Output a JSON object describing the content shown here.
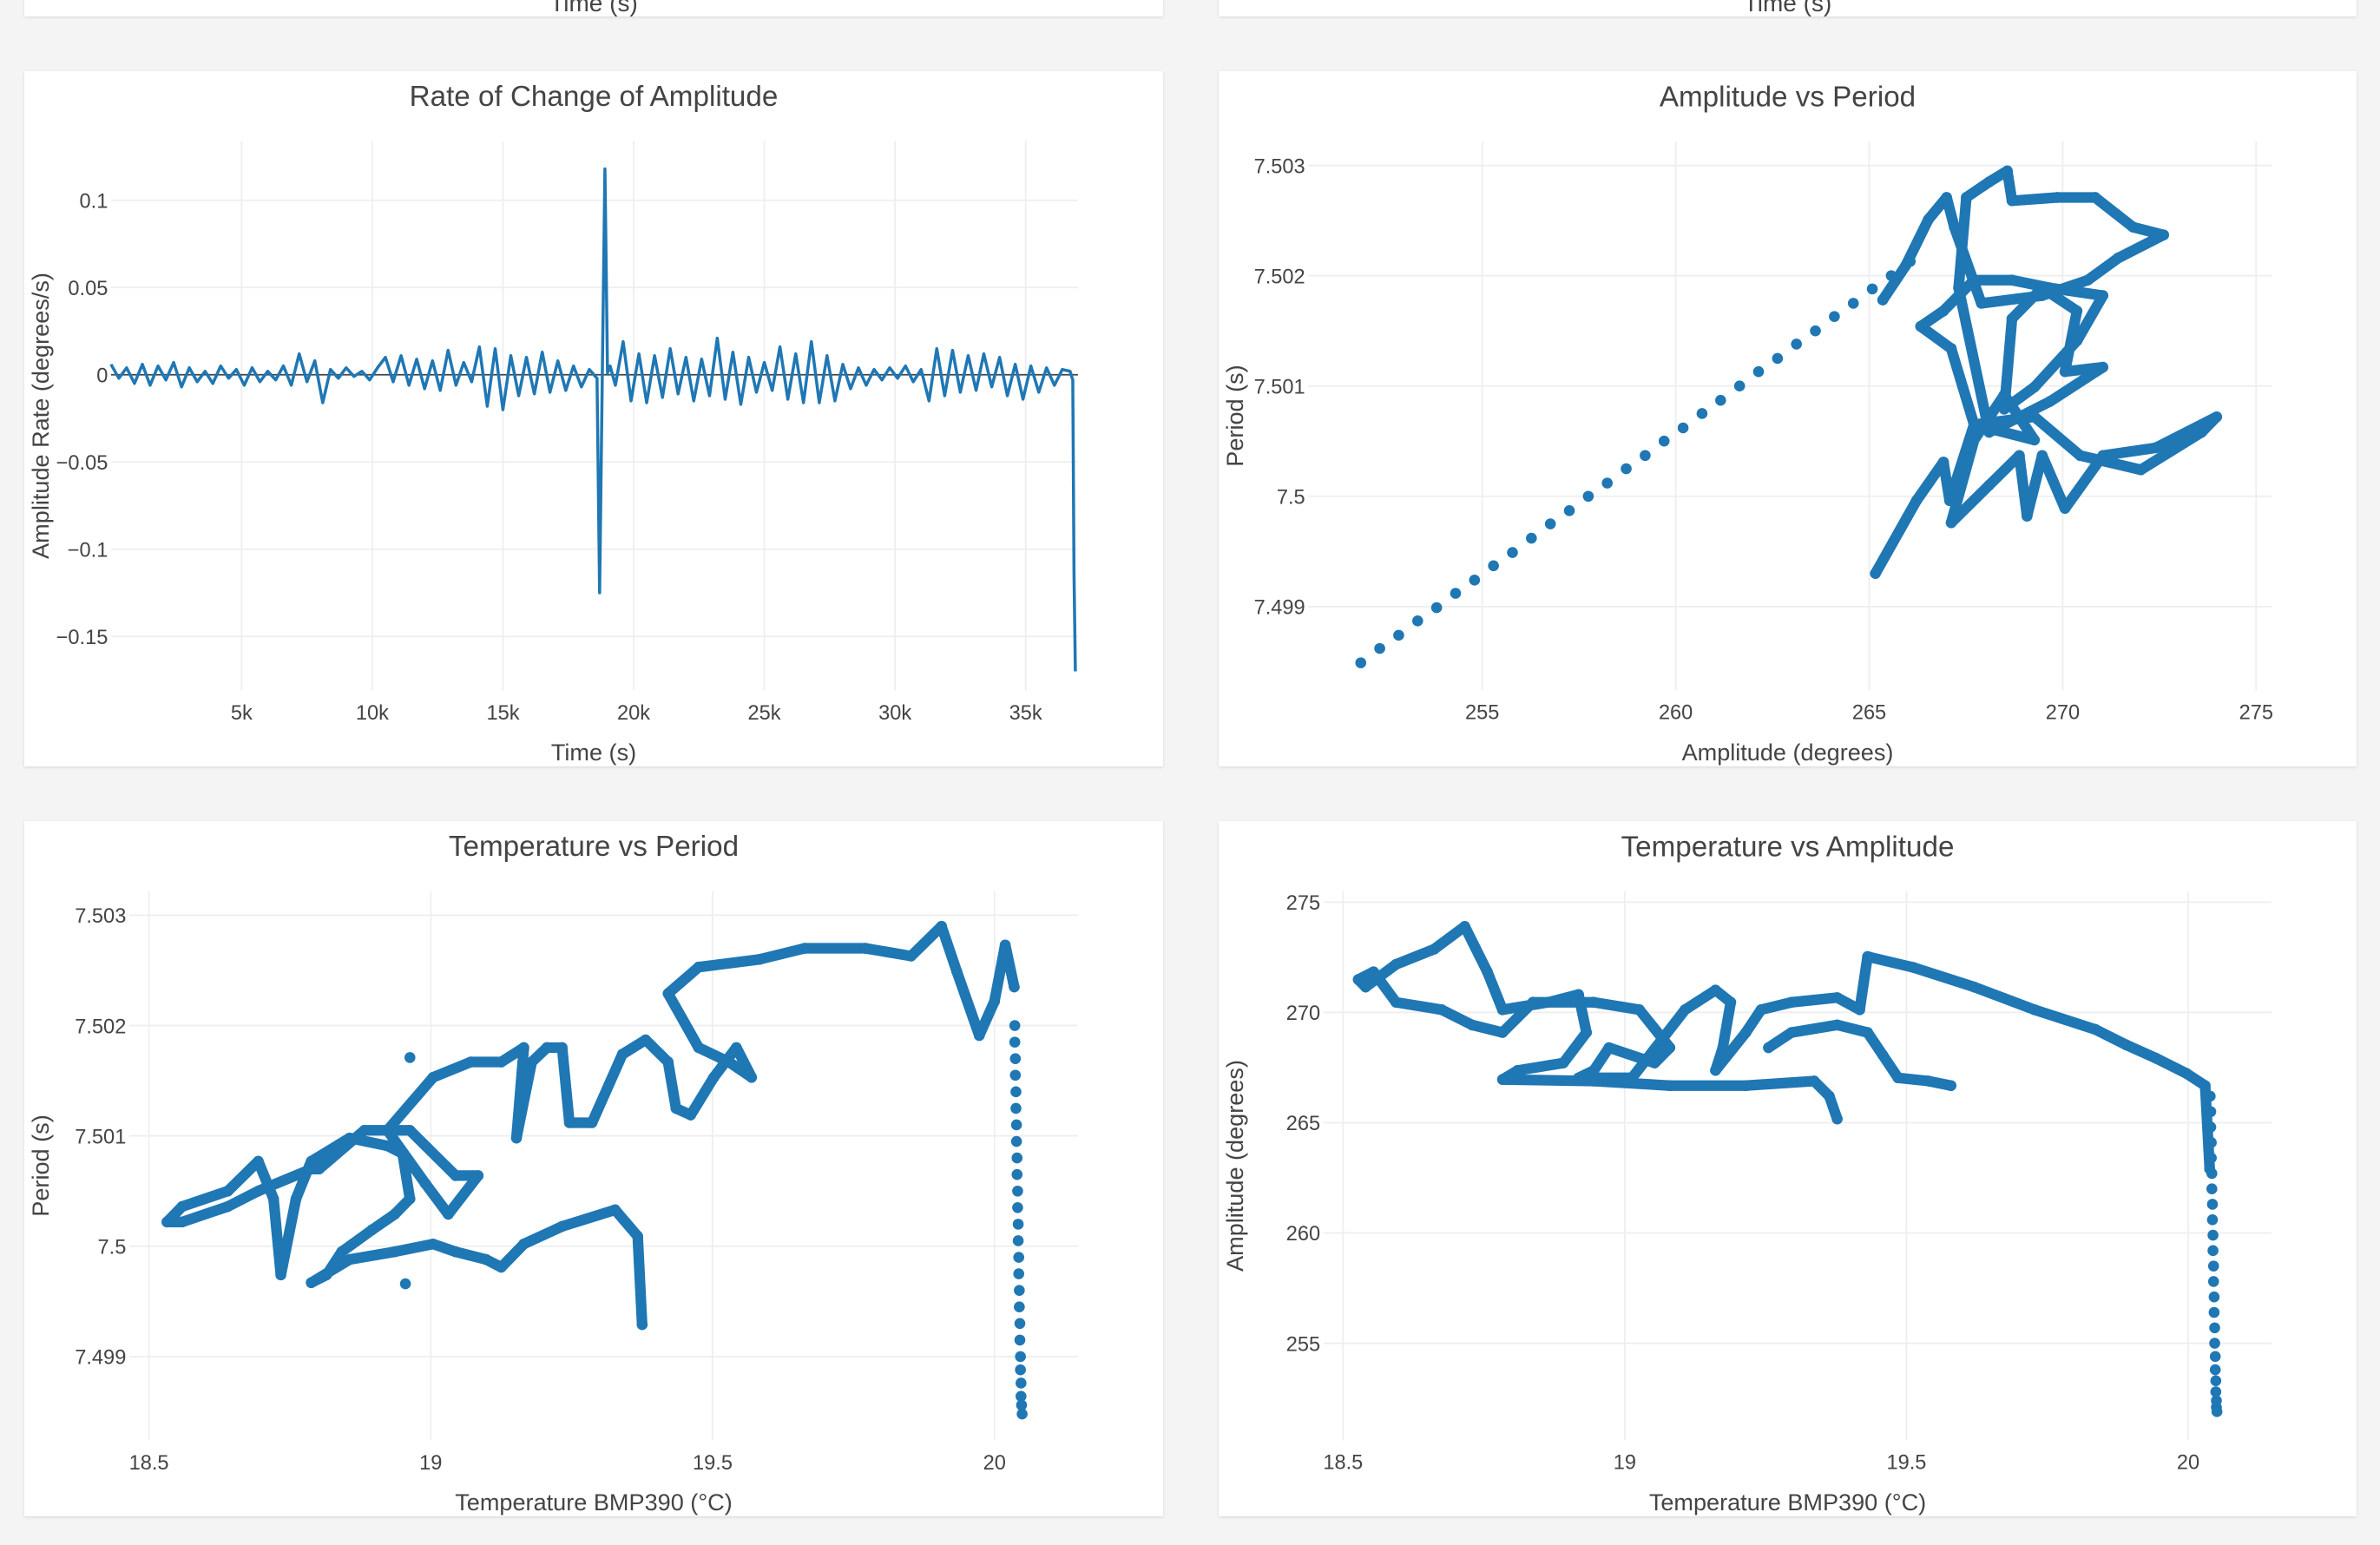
{
  "top_partial": [
    {
      "xlabel": "Time (s)"
    },
    {
      "xlabel": "Time (s)"
    }
  ],
  "colors": {
    "series": "#1f77b4",
    "grid": "#eeeeee",
    "zero_line": "#444444",
    "background": "#f4f4f4"
  },
  "chart_data": [
    {
      "type": "line",
      "title": "Rate of Change of Amplitude",
      "xlabel": "Time (s)",
      "ylabel": "Amplitude Rate (degrees/s)",
      "xlim": [
        0,
        37000
      ],
      "ylim": [
        -0.181,
        0.134
      ],
      "xticks": [
        5000,
        10000,
        15000,
        20000,
        25000,
        30000,
        35000
      ],
      "xtick_labels": [
        "5k",
        "10k",
        "15k",
        "20k",
        "25k",
        "30k",
        "35k"
      ],
      "yticks": [
        0.1,
        0.05,
        0,
        -0.05,
        -0.1,
        -0.15
      ],
      "ytick_labels": [
        "0.1",
        "0.05",
        "0",
        "−0.05",
        "−0.1",
        "−0.15"
      ],
      "grid": true,
      "zero_line": true,
      "series": [
        {
          "x": [
            0,
            300,
            600,
            900,
            1200,
            1500,
            1800,
            2100,
            2400,
            2700,
            3000,
            3300,
            3600,
            3900,
            4200,
            4500,
            4800,
            5100,
            5400,
            5700,
            6000,
            6300,
            6600,
            6900,
            7200,
            7500,
            7800,
            8100,
            8400,
            8700,
            9000,
            9300,
            9600,
            9900,
            10200,
            10500,
            10800,
            11100,
            11400,
            11700,
            12000,
            12300,
            12600,
            12900,
            13200,
            13500,
            13800,
            14100,
            14400,
            14700,
            15000,
            15300,
            15600,
            15900,
            16200,
            16500,
            16800,
            17100,
            17400,
            17700,
            18000,
            18300,
            18600,
            18700,
            18800,
            18900,
            19000,
            19100,
            19300,
            19600,
            19900,
            20200,
            20500,
            20800,
            21100,
            21400,
            21700,
            22000,
            22300,
            22600,
            22900,
            23200,
            23500,
            23800,
            24100,
            24400,
            24700,
            25000,
            25300,
            25600,
            25900,
            26200,
            26500,
            26800,
            27100,
            27400,
            27700,
            28000,
            28300,
            28600,
            28900,
            29200,
            29500,
            29800,
            30100,
            30400,
            30700,
            31000,
            31300,
            31600,
            31900,
            32200,
            32500,
            32800,
            33100,
            33400,
            33700,
            34000,
            34300,
            34600,
            34900,
            35200,
            35500,
            35800,
            36100,
            36400,
            36700,
            36800,
            36850,
            36900
          ],
          "y": [
            0.006,
            -0.002,
            0.004,
            -0.005,
            0.006,
            -0.006,
            0.005,
            -0.003,
            0.007,
            -0.007,
            0.004,
            -0.004,
            0.002,
            -0.005,
            0.005,
            -0.002,
            0.003,
            -0.006,
            0.004,
            -0.004,
            0.002,
            -0.003,
            0.005,
            -0.006,
            0.012,
            -0.004,
            0.008,
            -0.016,
            0.003,
            -0.002,
            0.004,
            -0.001,
            0.002,
            -0.003,
            0.004,
            0.01,
            -0.004,
            0.011,
            -0.006,
            0.009,
            -0.008,
            0.008,
            -0.009,
            0.014,
            -0.006,
            0.007,
            -0.004,
            0.016,
            -0.018,
            0.015,
            -0.02,
            0.011,
            -0.012,
            0.01,
            -0.011,
            0.013,
            -0.01,
            0.008,
            -0.009,
            0.005,
            -0.007,
            0.003,
            -0.002,
            -0.125,
            0.002,
            0.118,
            0.001,
            0.005,
            -0.006,
            0.019,
            -0.015,
            0.012,
            -0.016,
            0.011,
            -0.013,
            0.015,
            -0.011,
            0.01,
            -0.015,
            0.009,
            -0.012,
            0.021,
            -0.014,
            0.013,
            -0.017,
            0.01,
            -0.01,
            0.007,
            -0.009,
            0.016,
            -0.014,
            0.012,
            -0.016,
            0.019,
            -0.016,
            0.011,
            -0.015,
            0.006,
            -0.008,
            0.004,
            -0.006,
            0.003,
            -0.003,
            0.004,
            -0.002,
            0.005,
            -0.004,
            0.003,
            -0.015,
            0.015,
            -0.012,
            0.014,
            -0.01,
            0.011,
            -0.009,
            0.012,
            -0.007,
            0.01,
            -0.012,
            0.006,
            -0.014,
            0.005,
            -0.01,
            0.004,
            -0.006,
            0.003,
            0.002,
            -0.003,
            -0.113,
            -0.17
          ]
        }
      ]
    },
    {
      "type": "scatter",
      "title": "Amplitude vs Period",
      "xlabel": "Amplitude (degrees)",
      "ylabel": "Period (s)",
      "xlim": [
        250.5,
        275.4
      ],
      "ylim": [
        7.49824,
        7.50322
      ],
      "xticks": [
        255,
        260,
        265,
        270,
        275
      ],
      "xtick_labels": [
        "255",
        "260",
        "265",
        "270",
        "275"
      ],
      "yticks": [
        7.503,
        7.502,
        7.501,
        7.5,
        7.499
      ],
      "ytick_labels": [
        "7.503",
        "7.502",
        "7.501",
        "7.5",
        "7.499"
      ],
      "grid": true,
      "dense_path": {
        "x": [
          265.16,
          266.22,
          266.92,
          267.08,
          267.71,
          269.27,
          270.45,
          272.02,
          273.59,
          273.98,
          272.41,
          271.04,
          270.06,
          269.47,
          269.08,
          268.88,
          268.1,
          267.12,
          267.71,
          268.49,
          269.27,
          267.71,
          267.12,
          266.33,
          266.92,
          267.71,
          268.69,
          269.67,
          271.04,
          270.37,
          269.27,
          268.49,
          268.69,
          269.47,
          270.37,
          270.06,
          271.04,
          269.67,
          268.1,
          267.31,
          267.51,
          268.1,
          268.57,
          268.69,
          269.86,
          270.84,
          271.82,
          272.61,
          271.43,
          270.65,
          269.47,
          267.9,
          267.2,
          267.0,
          266.53,
          265.94,
          265.35
        ],
        "y": [
          7.4993,
          7.49996,
          7.50031,
          7.49996,
          7.50065,
          7.50072,
          7.50037,
          7.50024,
          7.50058,
          7.50072,
          7.50044,
          7.50037,
          7.49989,
          7.50037,
          7.49982,
          7.50037,
          7.5001,
          7.49976,
          7.50051,
          7.50092,
          7.50051,
          7.50065,
          7.50134,
          7.50154,
          7.50168,
          7.50196,
          7.50196,
          7.50189,
          7.50182,
          7.50141,
          7.50099,
          7.50079,
          7.50161,
          7.50189,
          7.50168,
          7.50113,
          7.50117,
          7.50086,
          7.50058,
          7.50189,
          7.50271,
          7.50285,
          7.50295,
          7.50268,
          7.50271,
          7.50271,
          7.50244,
          7.50237,
          7.50216,
          7.50196,
          7.50182,
          7.50175,
          7.50244,
          7.50271,
          7.50251,
          7.50209,
          7.50178
        ]
      },
      "sparse_points": {
        "x": [
          251.86,
          252.35,
          252.84,
          253.33,
          253.82,
          254.31,
          254.8,
          255.29,
          255.78,
          256.27,
          256.76,
          257.25,
          257.74,
          258.23,
          258.72,
          259.21,
          259.7,
          260.19,
          260.68,
          261.16,
          261.65,
          262.14,
          262.63,
          263.12,
          263.61,
          264.1,
          264.59,
          265.08,
          265.57,
          266.06
        ],
        "y": [
          7.49849,
          7.49862,
          7.49874,
          7.49887,
          7.49899,
          7.49912,
          7.49924,
          7.49937,
          7.49949,
          7.49962,
          7.49975,
          7.49987,
          7.5,
          7.50012,
          7.50025,
          7.50037,
          7.5005,
          7.50062,
          7.50075,
          7.50087,
          7.501,
          7.50113,
          7.50125,
          7.50138,
          7.5015,
          7.50163,
          7.50175,
          7.50188,
          7.502,
          7.50213
        ]
      }
    },
    {
      "type": "scatter",
      "title": "Temperature vs Period",
      "xlabel": "Temperature BMP390 (°C)",
      "ylabel": "Period (s)",
      "xlim": [
        18.465,
        20.148
      ],
      "ylim": [
        7.49824,
        7.50322
      ],
      "xticks": [
        18.5,
        19,
        19.5,
        20
      ],
      "xtick_labels": [
        "18.5",
        "19",
        "19.5",
        "20"
      ],
      "yticks": [
        7.503,
        7.502,
        7.501,
        7.5,
        7.499
      ],
      "ytick_labels": [
        "7.503",
        "7.502",
        "7.501",
        "7.5",
        "7.499"
      ],
      "grid": true,
      "dense_path": {
        "x": [
          19.375,
          19.367,
          19.327,
          19.233,
          19.165,
          19.125,
          19.098,
          19.044,
          19.004,
          18.936,
          18.856,
          18.788,
          18.815,
          18.842,
          18.896,
          18.936,
          18.963,
          18.95,
          18.923,
          18.856,
          18.788,
          18.761,
          18.734,
          18.721,
          18.694,
          18.64,
          18.559,
          18.532,
          18.559,
          18.64,
          18.694,
          18.788,
          18.802,
          18.882,
          18.963,
          19.044,
          19.084,
          19.031,
          18.99,
          18.923,
          19.004,
          19.071,
          19.125,
          19.165,
          19.152,
          19.179,
          19.206,
          19.233,
          19.246,
          19.286,
          19.34,
          19.381,
          19.421,
          19.435,
          19.461,
          19.502,
          19.542,
          19.569,
          19.529,
          19.475,
          19.421,
          19.475,
          19.583,
          19.663,
          19.771,
          19.852,
          19.906,
          19.933,
          19.973,
          20.0,
          20.019,
          20.035
        ],
        "y": [
          7.49929,
          7.50009,
          7.50033,
          7.50018,
          7.50002,
          7.49981,
          7.49988,
          7.49995,
          7.50002,
          7.49995,
          7.49988,
          7.49967,
          7.49974,
          7.49995,
          7.50015,
          7.50029,
          7.50043,
          7.50084,
          7.50091,
          7.50098,
          7.50077,
          7.50043,
          7.49974,
          7.50043,
          7.50077,
          7.5005,
          7.50036,
          7.50022,
          7.50022,
          7.50036,
          7.5005,
          7.5007,
          7.5007,
          7.50105,
          7.50105,
          7.50064,
          7.50064,
          7.50029,
          7.50057,
          7.50105,
          7.50153,
          7.50167,
          7.50167,
          7.5018,
          7.50098,
          7.50167,
          7.5018,
          7.5018,
          7.50112,
          7.50112,
          7.50174,
          7.50187,
          7.50167,
          7.50125,
          7.50119,
          7.50153,
          7.5018,
          7.50153,
          7.50167,
          7.5018,
          7.50229,
          7.50253,
          7.5026,
          7.5027,
          7.5027,
          7.50263,
          7.5029,
          7.50249,
          7.50191,
          7.50222,
          7.50273,
          7.50235
        ]
      },
      "sparse_points": {
        "x": [
          18.963,
          18.955,
          20.036,
          20.036,
          20.037,
          20.037,
          20.038,
          20.038,
          20.039,
          20.039,
          20.04,
          20.04,
          20.041,
          20.041,
          20.042,
          20.042,
          20.043,
          20.043,
          20.044,
          20.044,
          20.045,
          20.045,
          20.046,
          20.046,
          20.047,
          20.047,
          20.048,
          20.049
        ],
        "y": [
          7.50171,
          7.49966,
          7.502,
          7.50185,
          7.5017,
          7.50155,
          7.5014,
          7.50125,
          7.5011,
          7.50095,
          7.5008,
          7.50065,
          7.5005,
          7.50035,
          7.5002,
          7.50005,
          7.4999,
          7.49975,
          7.4996,
          7.49945,
          7.4993,
          7.49915,
          7.499,
          7.49888,
          7.49876,
          7.49864,
          7.49856,
          7.49848
        ]
      }
    },
    {
      "type": "scatter",
      "title": "Temperature vs Amplitude",
      "xlabel": "Temperature BMP390 (°C)",
      "ylabel": "Amplitude (degrees)",
      "xlim": [
        18.465,
        20.148
      ],
      "ylim": [
        250.6,
        275.5
      ],
      "xticks": [
        18.5,
        19,
        19.5,
        20
      ],
      "xtick_labels": [
        "18.5",
        "19",
        "19.5",
        "20"
      ],
      "yticks": [
        275,
        270,
        265,
        260,
        255
      ],
      "ytick_labels": [
        "275",
        "270",
        "265",
        "260",
        "255"
      ],
      "grid": true,
      "dense_path": {
        "x": [
          19.377,
          19.363,
          19.336,
          19.215,
          19.08,
          18.945,
          18.783,
          18.81,
          18.891,
          18.932,
          18.918,
          18.864,
          18.783,
          18.756,
          18.716,
          18.662,
          18.594,
          18.54,
          18.527,
          18.554,
          18.594,
          18.675,
          18.729,
          18.783,
          18.837,
          18.945,
          19.026,
          19.08,
          19.053,
          18.972,
          18.945,
          18.918,
          19.013,
          19.107,
          19.161,
          19.188,
          19.174,
          19.161,
          19.215,
          19.242,
          19.296,
          19.377,
          19.417,
          19.431,
          19.512,
          19.62,
          19.727,
          19.835,
          19.889,
          19.943,
          19.997,
          20.03,
          20.038
        ],
        "y": [
          265.17,
          266.2,
          266.89,
          266.68,
          266.68,
          266.89,
          266.96,
          267.37,
          267.71,
          269.09,
          270.81,
          270.46,
          270.12,
          271.84,
          273.9,
          272.87,
          272.18,
          271.15,
          271.49,
          271.84,
          270.46,
          270.12,
          269.43,
          269.09,
          270.46,
          270.46,
          270.12,
          268.4,
          267.71,
          268.4,
          267.37,
          267.03,
          267.03,
          270.12,
          271.01,
          270.46,
          268.4,
          267.37,
          269.09,
          270.12,
          270.46,
          270.67,
          270.12,
          272.53,
          272.04,
          271.15,
          270.12,
          269.23,
          268.54,
          267.92,
          267.23,
          266.68,
          262.9
        ]
      },
      "dense_path_2": {
        "x": [
          19.255,
          19.296,
          19.377,
          19.431,
          19.458,
          19.485,
          19.539,
          19.579
        ],
        "y": [
          268.4,
          269.09,
          269.43,
          269.09,
          268.06,
          267.03,
          266.89,
          266.68
        ]
      },
      "sparse_points": {
        "x": [
          20.039,
          20.04,
          20.04,
          20.041,
          20.041,
          20.042,
          20.042,
          20.043,
          20.043,
          20.044,
          20.044,
          20.045,
          20.045,
          20.046,
          20.046,
          20.047,
          20.047,
          20.048,
          20.048,
          20.049,
          20.049,
          20.05,
          20.05,
          20.051
        ],
        "y": [
          266.2,
          265.5,
          264.8,
          264.1,
          263.4,
          262.7,
          262.0,
          261.3,
          260.6,
          259.9,
          259.2,
          258.5,
          257.8,
          257.1,
          256.4,
          255.7,
          255.0,
          254.4,
          253.8,
          253.3,
          252.8,
          252.4,
          252.1,
          251.9
        ]
      }
    }
  ]
}
